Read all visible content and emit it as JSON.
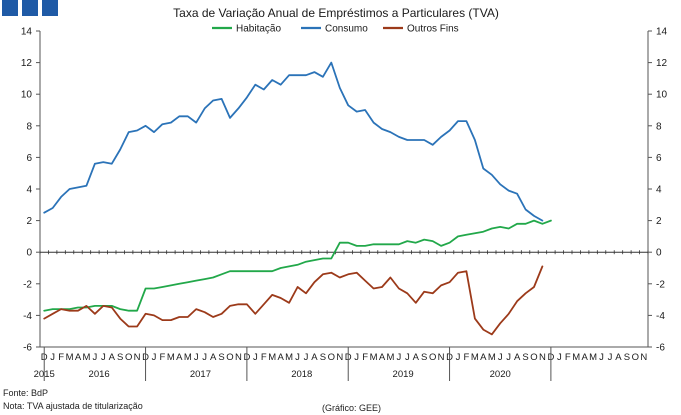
{
  "chart_data": {
    "type": "line",
    "title": "Taxa de Variação Anual de Empréstimos a Particulares (TVA)",
    "ylim": [
      -6,
      14
    ],
    "yticks": [
      -6,
      -4,
      -2,
      0,
      2,
      4,
      6,
      8,
      10,
      12,
      14
    ],
    "grid": false,
    "legend_position": "top-center",
    "month_labels": [
      "D",
      "J",
      "F",
      "M",
      "A",
      "M",
      "J",
      "J",
      "A",
      "S",
      "O",
      "N",
      "D",
      "J",
      "F",
      "M",
      "A",
      "M",
      "J",
      "J",
      "A",
      "S",
      "O",
      "N",
      "D",
      "J",
      "F",
      "M",
      "A",
      "M",
      "J",
      "J",
      "A",
      "S",
      "O",
      "N",
      "D",
      "J",
      "F",
      "M",
      "A",
      "M",
      "J",
      "J",
      "A",
      "S",
      "O",
      "N",
      "D",
      "J",
      "F",
      "M",
      "A",
      "M",
      "J",
      "J",
      "A",
      "S",
      "O",
      "N",
      "D",
      "J",
      "F",
      "M",
      "A",
      "M",
      "J",
      "J",
      "A",
      "S",
      "O",
      "N"
    ],
    "year_labels": [
      {
        "label": "2015",
        "month_index": 0
      },
      {
        "label": "2016",
        "month_index": 6.5
      },
      {
        "label": "2017",
        "month_index": 18.5
      },
      {
        "label": "2018",
        "month_index": 30.5
      },
      {
        "label": "2019",
        "month_index": 42.5
      },
      {
        "label": "2020",
        "month_index": 54
      }
    ],
    "year_separators": [
      0.5,
      12.5,
      24.5,
      36.5,
      48.5,
      60.5
    ],
    "series": [
      {
        "name": "Habitação",
        "color": "#22a84a",
        "values": [
          -3.7,
          -3.6,
          -3.6,
          -3.6,
          -3.5,
          -3.5,
          -3.4,
          -3.4,
          -3.4,
          -3.6,
          -3.7,
          -3.7,
          -2.3,
          -2.3,
          -2.2,
          -2.1,
          -2.0,
          -1.9,
          -1.8,
          -1.7,
          -1.6,
          -1.4,
          -1.2,
          -1.2,
          -1.2,
          -1.2,
          -1.2,
          -1.2,
          -1.0,
          -0.9,
          -0.8,
          -0.6,
          -0.5,
          -0.4,
          -0.4,
          0.6,
          0.6,
          0.4,
          0.4,
          0.5,
          0.5,
          0.5,
          0.5,
          0.7,
          0.6,
          0.8,
          0.7,
          0.4,
          0.6,
          1.0,
          1.1,
          1.2,
          1.3,
          1.5,
          1.6,
          1.5,
          1.8,
          1.8,
          2.0,
          1.8,
          2.0
        ]
      },
      {
        "name": "Consumo",
        "color": "#2b73b8",
        "values": [
          2.5,
          2.8,
          3.5,
          4.0,
          4.1,
          4.2,
          5.6,
          5.7,
          5.6,
          6.5,
          7.6,
          7.7,
          8.0,
          7.6,
          8.1,
          8.2,
          8.6,
          8.6,
          8.2,
          9.1,
          9.6,
          9.7,
          8.5,
          9.1,
          9.8,
          10.6,
          10.3,
          10.9,
          10.6,
          11.2,
          11.2,
          11.2,
          11.4,
          11.1,
          12.0,
          10.4,
          9.3,
          8.9,
          9.0,
          8.2,
          7.8,
          7.6,
          7.3,
          7.1,
          7.1,
          7.1,
          6.8,
          7.3,
          7.7,
          8.3,
          8.3,
          7.1,
          5.3,
          4.9,
          4.3,
          3.9,
          3.7,
          2.7,
          2.3,
          2.0
        ]
      },
      {
        "name": "Outros Fins",
        "color": "#9c3a1a",
        "values": [
          -4.2,
          -3.9,
          -3.6,
          -3.7,
          -3.7,
          -3.4,
          -3.9,
          -3.4,
          -3.5,
          -4.2,
          -4.7,
          -4.7,
          -3.9,
          -4.0,
          -4.3,
          -4.3,
          -4.1,
          -4.1,
          -3.6,
          -3.8,
          -4.1,
          -3.9,
          -3.4,
          -3.3,
          -3.3,
          -3.9,
          -3.3,
          -2.7,
          -2.9,
          -3.2,
          -2.2,
          -2.6,
          -1.9,
          -1.4,
          -1.3,
          -1.6,
          -1.4,
          -1.3,
          -1.8,
          -2.3,
          -2.2,
          -1.6,
          -2.3,
          -2.6,
          -3.2,
          -2.5,
          -2.6,
          -2.1,
          -1.9,
          -1.3,
          -1.2,
          -4.2,
          -4.9,
          -5.2,
          -4.5,
          -3.9,
          -3.1,
          -2.6,
          -2.2,
          -0.9
        ]
      }
    ]
  },
  "footer": {
    "source": "Fonte: BdP",
    "note": "Nota: TVA ajustada de titularização",
    "credit": "(Gráfico: GEE)"
  }
}
